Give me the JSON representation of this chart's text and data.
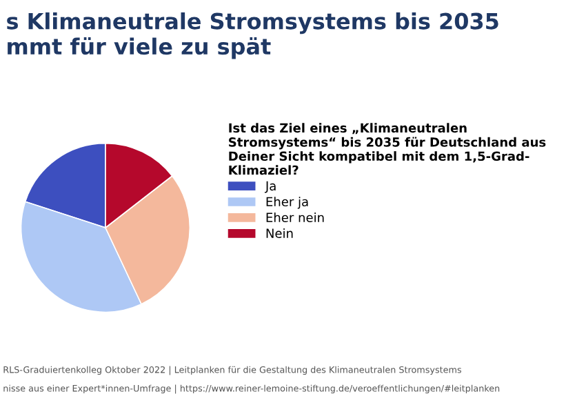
{
  "chart_data": {
    "type": "pie",
    "title": "s Klimaneutrale Stromsystems bis 2035\nmmt für viele zu spät",
    "legend_title": "Ist das Ziel eines „Klimaneutralen\nStromsystems“ bis 2035 für Deutschland aus\nDeiner Sicht kompatibel mit dem 1,5-Grad-\nKlimaziel?",
    "categories": [
      "Ja",
      "Eher ja",
      "Eher nein",
      "Nein"
    ],
    "values": [
      20,
      37,
      28.5,
      14.5
    ],
    "colors": [
      "#3d4fbf",
      "#aec8f5",
      "#f4b89c",
      "#b5082c"
    ],
    "legend": "right",
    "annotations": [
      "RLS-Graduiertenkolleg Oktober 2022 | Leitplanken für die Gestaltung des Klimaneutralen Stromsystems",
      "nisse aus einer Expert*innen-Umfrage | https://www.reiner-lemoine-stiftung.de/veroeffentlichungen/#leitplanken"
    ]
  }
}
